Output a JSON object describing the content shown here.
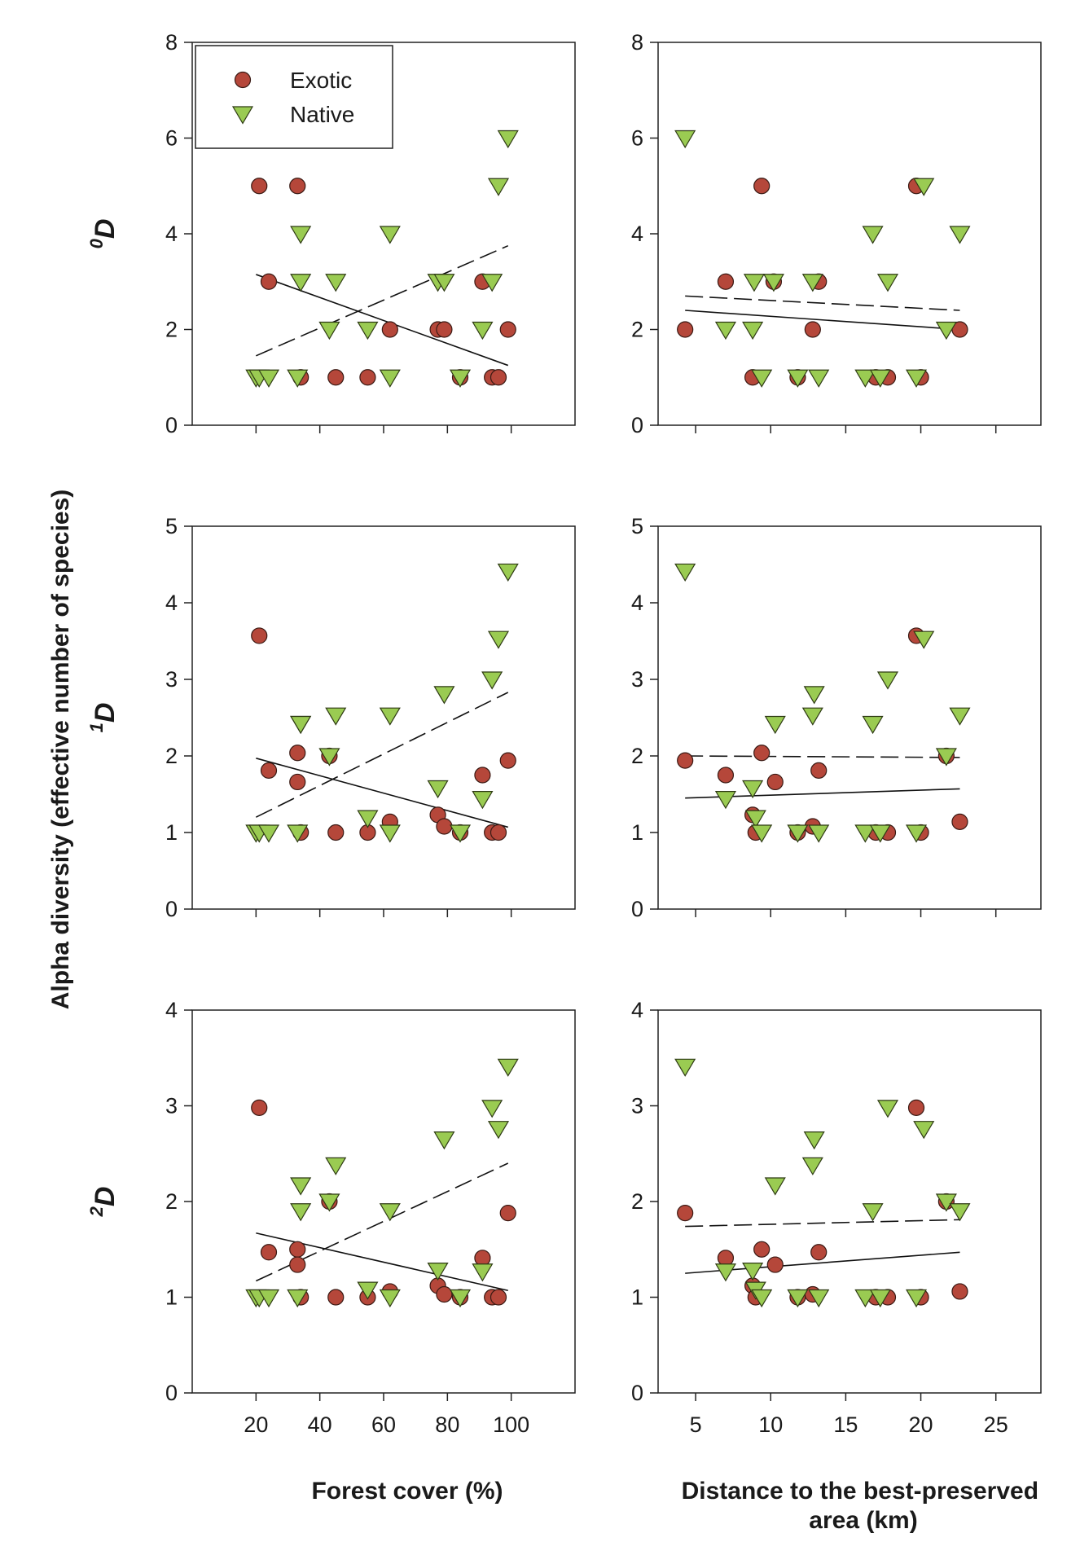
{
  "figure": {
    "y_label": "Alpha diversity (effective number of species)",
    "x_labels": [
      "Forest cover (%)",
      "Distance to the best-preserved area (km)"
    ],
    "legend": [
      {
        "label": "Exotic",
        "marker": "circle",
        "color": "#b5473a"
      },
      {
        "label": "Native",
        "marker": "triangle-down",
        "color": "#9acb52"
      }
    ],
    "rows": [
      {
        "sup": "0",
        "symbol": "D"
      },
      {
        "sup": "1",
        "symbol": "D"
      },
      {
        "sup": "2",
        "symbol": "D"
      }
    ]
  },
  "chart_data": [
    {
      "type": "scatter",
      "row": 0,
      "col": 0,
      "xlabel": "Forest cover (%)",
      "ylabel": "0D",
      "xlim": [
        0,
        120
      ],
      "ylim": [
        0,
        8
      ],
      "xticks": [
        20,
        40,
        60,
        80,
        100
      ],
      "yticks": [
        0,
        2,
        4,
        6,
        8
      ],
      "grid": false,
      "legend": "top-left",
      "series": [
        {
          "name": "Exotic",
          "marker": "circle",
          "x": [
            21,
            24,
            33,
            34,
            45,
            55,
            62,
            77,
            79,
            84,
            91,
            94,
            96,
            99
          ],
          "y": [
            5,
            3,
            5,
            1,
            1,
            1,
            2,
            2,
            2,
            1,
            3,
            1,
            1,
            2
          ],
          "fit": {
            "x": [
              20,
              99
            ],
            "y": [
              3.15,
              1.25
            ],
            "style": "solid"
          }
        },
        {
          "name": "Native",
          "marker": "triangle-down",
          "x": [
            20,
            21,
            24,
            33,
            34,
            34,
            43,
            45,
            55,
            62,
            62,
            77,
            79,
            84,
            91,
            94,
            96,
            99
          ],
          "y": [
            1,
            1,
            1,
            1,
            3,
            4,
            2,
            3,
            2,
            1,
            4,
            3,
            3,
            1,
            2,
            3,
            5,
            6
          ],
          "fit": {
            "x": [
              20,
              99
            ],
            "y": [
              1.45,
              3.75
            ],
            "style": "dashed"
          }
        }
      ]
    },
    {
      "type": "scatter",
      "row": 0,
      "col": 1,
      "xlabel": "Distance to the best-preserved area (km)",
      "ylabel": "0D",
      "xlim": [
        2.5,
        28
      ],
      "ylim": [
        0,
        8
      ],
      "xticks": [
        5,
        10,
        15,
        20,
        25
      ],
      "yticks": [
        0,
        2,
        4,
        6,
        8
      ],
      "grid": false,
      "series": [
        {
          "name": "Exotic",
          "marker": "circle",
          "x": [
            4.3,
            7.0,
            8.8,
            9.4,
            10.2,
            11.8,
            12.8,
            13.2,
            17.0,
            17.8,
            19.7,
            20.0,
            22.6
          ],
          "y": [
            2,
            3,
            1,
            5,
            3,
            1,
            2,
            3,
            1,
            1,
            5,
            1,
            2
          ],
          "fit": {
            "x": [
              4.3,
              22.6
            ],
            "y": [
              2.4,
              2.0
            ],
            "style": "solid"
          }
        },
        {
          "name": "Native",
          "marker": "triangle-down",
          "x": [
            4.3,
            7.0,
            8.8,
            8.9,
            9.4,
            10.2,
            11.8,
            12.8,
            13.2,
            16.3,
            16.8,
            17.3,
            17.8,
            19.7,
            20.2,
            21.7,
            22.6
          ],
          "y": [
            6,
            2,
            2,
            3,
            1,
            3,
            1,
            3,
            1,
            1,
            4,
            1,
            3,
            1,
            5,
            2,
            4
          ],
          "fit": {
            "x": [
              4.3,
              22.6
            ],
            "y": [
              2.7,
              2.4
            ],
            "style": "dashed"
          }
        }
      ]
    },
    {
      "type": "scatter",
      "row": 1,
      "col": 0,
      "xlabel": "Forest cover (%)",
      "ylabel": "1D",
      "xlim": [
        0,
        120
      ],
      "ylim": [
        0,
        5
      ],
      "xticks": [
        20,
        40,
        60,
        80,
        100
      ],
      "yticks": [
        0,
        1,
        2,
        3,
        4,
        5
      ],
      "grid": false,
      "series": [
        {
          "name": "Exotic",
          "marker": "circle",
          "x": [
            21,
            24,
            33,
            33,
            34,
            43,
            45,
            55,
            62,
            77,
            79,
            84,
            91,
            94,
            96,
            99
          ],
          "y": [
            3.57,
            1.81,
            2.04,
            1.66,
            1.0,
            2.0,
            1.0,
            1.0,
            1.14,
            1.23,
            1.08,
            1.0,
            1.75,
            1.0,
            1.0,
            1.94
          ],
          "fit": {
            "x": [
              20,
              99
            ],
            "y": [
              1.97,
              1.07
            ],
            "style": "solid"
          }
        },
        {
          "name": "Native",
          "marker": "triangle-down",
          "x": [
            20,
            21,
            24,
            33,
            34,
            34,
            43,
            45,
            55,
            62,
            62,
            77,
            79,
            84,
            91,
            94,
            96,
            99
          ],
          "y": [
            1.0,
            1.0,
            1.0,
            1.0,
            2.42,
            2.42,
            2.0,
            2.53,
            1.19,
            1.0,
            2.53,
            1.58,
            2.81,
            1.0,
            1.44,
            3.0,
            3.53,
            4.41
          ],
          "fit": {
            "x": [
              20,
              99
            ],
            "y": [
              1.2,
              2.83
            ],
            "style": "dashed"
          }
        }
      ]
    },
    {
      "type": "scatter",
      "row": 1,
      "col": 1,
      "xlabel": "Distance to the best-preserved area (km)",
      "ylabel": "1D",
      "xlim": [
        2.5,
        28
      ],
      "ylim": [
        0,
        5
      ],
      "xticks": [
        5,
        10,
        15,
        20,
        25
      ],
      "yticks": [
        0,
        1,
        2,
        3,
        4,
        5
      ],
      "grid": false,
      "series": [
        {
          "name": "Exotic",
          "marker": "circle",
          "x": [
            4.3,
            7.0,
            8.8,
            9.0,
            9.4,
            10.3,
            11.8,
            12.8,
            13.2,
            17.0,
            17.8,
            19.7,
            20.0,
            21.7,
            22.6
          ],
          "y": [
            1.94,
            1.75,
            1.23,
            1.0,
            2.04,
            1.66,
            1.0,
            1.08,
            1.81,
            1.0,
            1.0,
            3.57,
            1.0,
            2.0,
            1.14
          ],
          "fit": {
            "x": [
              4.3,
              22.6
            ],
            "y": [
              1.45,
              1.57
            ],
            "style": "solid"
          }
        },
        {
          "name": "Native",
          "marker": "triangle-down",
          "x": [
            4.3,
            7.0,
            8.8,
            9.0,
            9.4,
            10.3,
            11.8,
            12.8,
            12.9,
            13.2,
            16.3,
            16.8,
            17.3,
            17.8,
            19.7,
            20.2,
            21.7,
            22.6
          ],
          "y": [
            4.41,
            1.44,
            1.58,
            1.19,
            1.0,
            2.42,
            1.0,
            2.53,
            2.81,
            1.0,
            1.0,
            2.42,
            1.0,
            3.0,
            1.0,
            3.53,
            2.0,
            2.53
          ],
          "fit": {
            "x": [
              4.3,
              22.6
            ],
            "y": [
              2.0,
              1.98
            ],
            "style": "dashed"
          }
        }
      ]
    },
    {
      "type": "scatter",
      "row": 2,
      "col": 0,
      "xlabel": "Forest cover (%)",
      "ylabel": "2D",
      "xlim": [
        0,
        120
      ],
      "ylim": [
        0,
        4
      ],
      "xticks": [
        20,
        40,
        60,
        80,
        100
      ],
      "yticks": [
        0,
        1,
        2,
        3,
        4
      ],
      "grid": false,
      "series": [
        {
          "name": "Exotic",
          "marker": "circle",
          "x": [
            21,
            24,
            33,
            33,
            34,
            43,
            45,
            55,
            62,
            77,
            79,
            84,
            91,
            94,
            96,
            99
          ],
          "y": [
            2.98,
            1.47,
            1.5,
            1.34,
            1.0,
            2.0,
            1.0,
            1.0,
            1.06,
            1.12,
            1.03,
            1.0,
            1.41,
            1.0,
            1.0,
            1.88
          ],
          "fit": {
            "x": [
              20,
              99
            ],
            "y": [
              1.67,
              1.07
            ],
            "style": "solid"
          }
        },
        {
          "name": "Native",
          "marker": "triangle-down",
          "x": [
            20,
            21,
            24,
            33,
            34,
            34,
            43,
            45,
            55,
            62,
            62,
            77,
            79,
            84,
            91,
            94,
            96,
            99
          ],
          "y": [
            1.0,
            1.0,
            1.0,
            1.0,
            2.17,
            1.9,
            2.0,
            2.38,
            1.08,
            1.0,
            1.9,
            1.28,
            2.65,
            1.0,
            1.27,
            2.98,
            2.76,
            3.41
          ],
          "fit": {
            "x": [
              20,
              99
            ],
            "y": [
              1.17,
              2.4
            ],
            "style": "dashed"
          }
        }
      ]
    },
    {
      "type": "scatter",
      "row": 2,
      "col": 1,
      "xlabel": "Distance to the best-preserved area (km)",
      "ylabel": "2D",
      "xlim": [
        2.5,
        28
      ],
      "ylim": [
        0,
        4
      ],
      "xticks": [
        5,
        10,
        15,
        20,
        25
      ],
      "yticks": [
        0,
        1,
        2,
        3,
        4
      ],
      "grid": false,
      "series": [
        {
          "name": "Exotic",
          "marker": "circle",
          "x": [
            4.3,
            7.0,
            8.8,
            9.0,
            9.4,
            10.3,
            11.8,
            12.8,
            13.2,
            17.0,
            17.8,
            19.7,
            20.0,
            21.7,
            22.6
          ],
          "y": [
            1.88,
            1.41,
            1.12,
            1.0,
            1.5,
            1.34,
            1.0,
            1.03,
            1.47,
            1.0,
            1.0,
            2.98,
            1.0,
            2.0,
            1.06
          ],
          "fit": {
            "x": [
              4.3,
              22.6
            ],
            "y": [
              1.25,
              1.47
            ],
            "style": "solid"
          }
        },
        {
          "name": "Native",
          "marker": "triangle-down",
          "x": [
            4.3,
            7.0,
            8.8,
            9.0,
            9.4,
            10.3,
            11.8,
            12.8,
            12.9,
            13.2,
            16.3,
            16.8,
            17.3,
            17.8,
            19.7,
            20.2,
            21.7,
            22.6
          ],
          "y": [
            3.41,
            1.27,
            1.28,
            1.08,
            1.0,
            2.17,
            1.0,
            2.38,
            2.65,
            1.0,
            1.0,
            1.9,
            1.0,
            2.98,
            1.0,
            2.76,
            2.0,
            1.9
          ],
          "fit": {
            "x": [
              4.3,
              22.6
            ],
            "y": [
              1.74,
              1.81
            ],
            "style": "dashed"
          }
        }
      ]
    }
  ]
}
